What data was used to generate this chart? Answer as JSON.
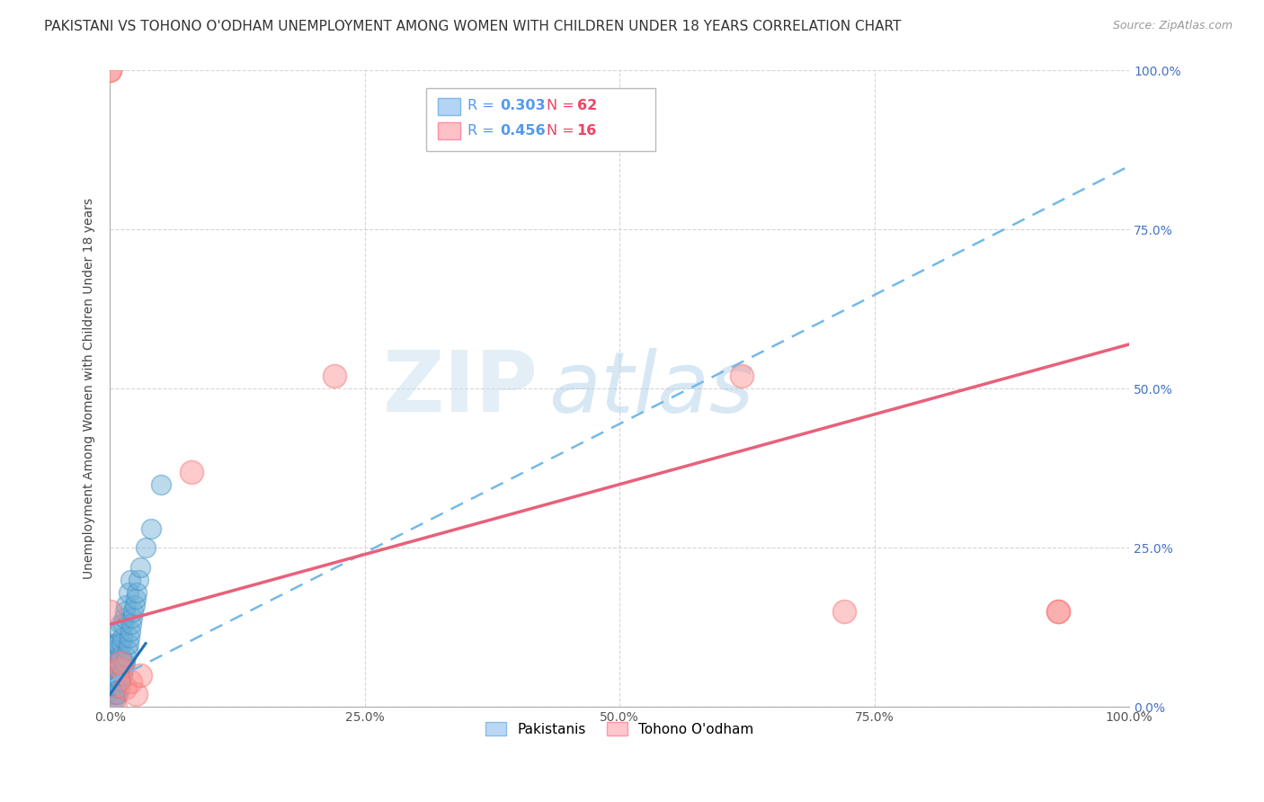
{
  "title": "PAKISTANI VS TOHONO O'ODHAM UNEMPLOYMENT AMONG WOMEN WITH CHILDREN UNDER 18 YEARS CORRELATION CHART",
  "source": "Source: ZipAtlas.com",
  "ylabel": "Unemployment Among Women with Children Under 18 years",
  "xlim": [
    0,
    1
  ],
  "ylim": [
    0,
    1
  ],
  "watermark_zip": "ZIP",
  "watermark_atlas": "atlas",
  "pakistani_x": [
    0.001,
    0.001,
    0.001,
    0.002,
    0.002,
    0.002,
    0.002,
    0.003,
    0.003,
    0.003,
    0.003,
    0.004,
    0.004,
    0.004,
    0.005,
    0.005,
    0.005,
    0.005,
    0.006,
    0.006,
    0.006,
    0.007,
    0.007,
    0.007,
    0.008,
    0.008,
    0.008,
    0.009,
    0.009,
    0.009,
    0.01,
    0.01,
    0.01,
    0.011,
    0.011,
    0.012,
    0.012,
    0.013,
    0.013,
    0.014,
    0.014,
    0.015,
    0.015,
    0.016,
    0.016,
    0.017,
    0.018,
    0.018,
    0.019,
    0.02,
    0.02,
    0.021,
    0.022,
    0.023,
    0.024,
    0.025,
    0.026,
    0.028,
    0.03,
    0.035,
    0.04,
    0.05
  ],
  "pakistani_y": [
    0.02,
    0.04,
    0.06,
    0.01,
    0.03,
    0.05,
    0.08,
    0.02,
    0.04,
    0.07,
    0.1,
    0.02,
    0.05,
    0.09,
    0.01,
    0.03,
    0.06,
    0.1,
    0.02,
    0.05,
    0.09,
    0.03,
    0.06,
    0.1,
    0.02,
    0.05,
    0.1,
    0.03,
    0.07,
    0.12,
    0.04,
    0.08,
    0.13,
    0.05,
    0.1,
    0.05,
    0.11,
    0.06,
    0.13,
    0.07,
    0.14,
    0.07,
    0.15,
    0.08,
    0.16,
    0.09,
    0.1,
    0.18,
    0.11,
    0.12,
    0.2,
    0.13,
    0.14,
    0.15,
    0.16,
    0.17,
    0.18,
    0.2,
    0.22,
    0.25,
    0.28,
    0.35
  ],
  "tohono_x": [
    0.0,
    0.0,
    0.005,
    0.01,
    0.015,
    0.02,
    0.025,
    0.03,
    0.08,
    0.22,
    0.62,
    0.72,
    0.93,
    0.93,
    0.0,
    0.01
  ],
  "tohono_y": [
    1.0,
    1.0,
    0.0,
    0.06,
    0.03,
    0.04,
    0.02,
    0.05,
    0.37,
    0.52,
    0.52,
    0.15,
    0.15,
    0.15,
    0.15,
    0.07
  ],
  "blue_line": [
    0.0,
    0.04,
    1.0,
    0.85
  ],
  "pink_line": [
    0.0,
    0.13,
    1.0,
    0.57
  ],
  "blue_scatter_color": "#6baed6",
  "blue_scatter_edge": "#4292c6",
  "pink_scatter_color": "#fc8d8d",
  "pink_scatter_edge": "#fb6a6a",
  "blue_line_color": "#74b9e8",
  "blue_dark_line_color": "#2171b5",
  "pink_line_color": "#e8607a",
  "grid_color": "#cccccc",
  "right_tick_color": "#4472c4",
  "background_color": "#ffffff",
  "title_fontsize": 11,
  "source_fontsize": 9,
  "axis_label_fontsize": 10,
  "tick_fontsize": 10,
  "legend_R1": "0.303",
  "legend_N1": "62",
  "legend_R2": "0.456",
  "legend_N2": "16"
}
